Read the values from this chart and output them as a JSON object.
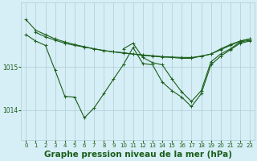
{
  "background_color": "#d6eef5",
  "grid_color": "#b0ccd4",
  "line_color": "#1a5e1a",
  "label_color": "#1a5e1a",
  "xlabel": "Graphe pression niveau de la mer (hPa)",
  "xlabel_fontsize": 7.5,
  "yticks": [
    1014,
    1015
  ],
  "xlim": [
    -0.5,
    23.5
  ],
  "ylim": [
    1013.3,
    1016.5
  ],
  "series1": {
    "x": [
      0,
      1,
      2,
      3,
      4,
      5,
      6,
      7,
      8,
      9,
      10,
      11,
      12,
      13,
      14,
      15,
      16,
      17,
      18,
      19,
      20,
      21,
      22,
      23
    ],
    "y": [
      1016.1,
      1015.85,
      1015.75,
      1015.65,
      1015.58,
      1015.52,
      1015.47,
      1015.42,
      1015.38,
      1015.35,
      1015.32,
      1015.3,
      1015.27,
      1015.25,
      1015.23,
      1015.22,
      1015.2,
      1015.2,
      1015.25,
      1015.3,
      1015.4,
      1015.5,
      1015.6,
      1015.65
    ]
  },
  "series2": {
    "x": [
      1,
      2,
      3,
      4,
      5,
      6,
      7,
      8,
      9,
      10,
      11,
      12,
      13,
      14,
      15,
      16,
      17,
      18,
      19,
      20,
      21,
      22,
      23
    ],
    "y": [
      1015.8,
      1015.7,
      1015.62,
      1015.55,
      1015.5,
      1015.46,
      1015.42,
      1015.38,
      1015.35,
      1015.33,
      1015.3,
      1015.28,
      1015.26,
      1015.24,
      1015.23,
      1015.22,
      1015.22,
      1015.25,
      1015.3,
      1015.42,
      1015.52,
      1015.6,
      1015.65
    ]
  },
  "series3": {
    "x": [
      0,
      1,
      2,
      3,
      4,
      5,
      6,
      7,
      8,
      9,
      10,
      11,
      12,
      13,
      14,
      15,
      16,
      17,
      18,
      19,
      20,
      21,
      22,
      23
    ],
    "y": [
      1015.75,
      1015.6,
      1015.5,
      1014.92,
      1014.32,
      1014.3,
      1013.82,
      1014.05,
      1014.38,
      1014.72,
      1015.05,
      1015.45,
      1015.08,
      1015.05,
      1014.65,
      1014.45,
      1014.3,
      1014.08,
      1014.38,
      1015.05,
      1015.25,
      1015.4,
      1015.55,
      1015.6
    ]
  },
  "series4": {
    "x": [
      10,
      11,
      12,
      13,
      14,
      15,
      16,
      17,
      18,
      19,
      20,
      21,
      22,
      23
    ],
    "y": [
      1015.42,
      1015.55,
      1015.22,
      1015.1,
      1015.05,
      1014.72,
      1014.42,
      1014.2,
      1014.45,
      1015.12,
      1015.3,
      1015.42,
      1015.58,
      1015.62
    ]
  }
}
